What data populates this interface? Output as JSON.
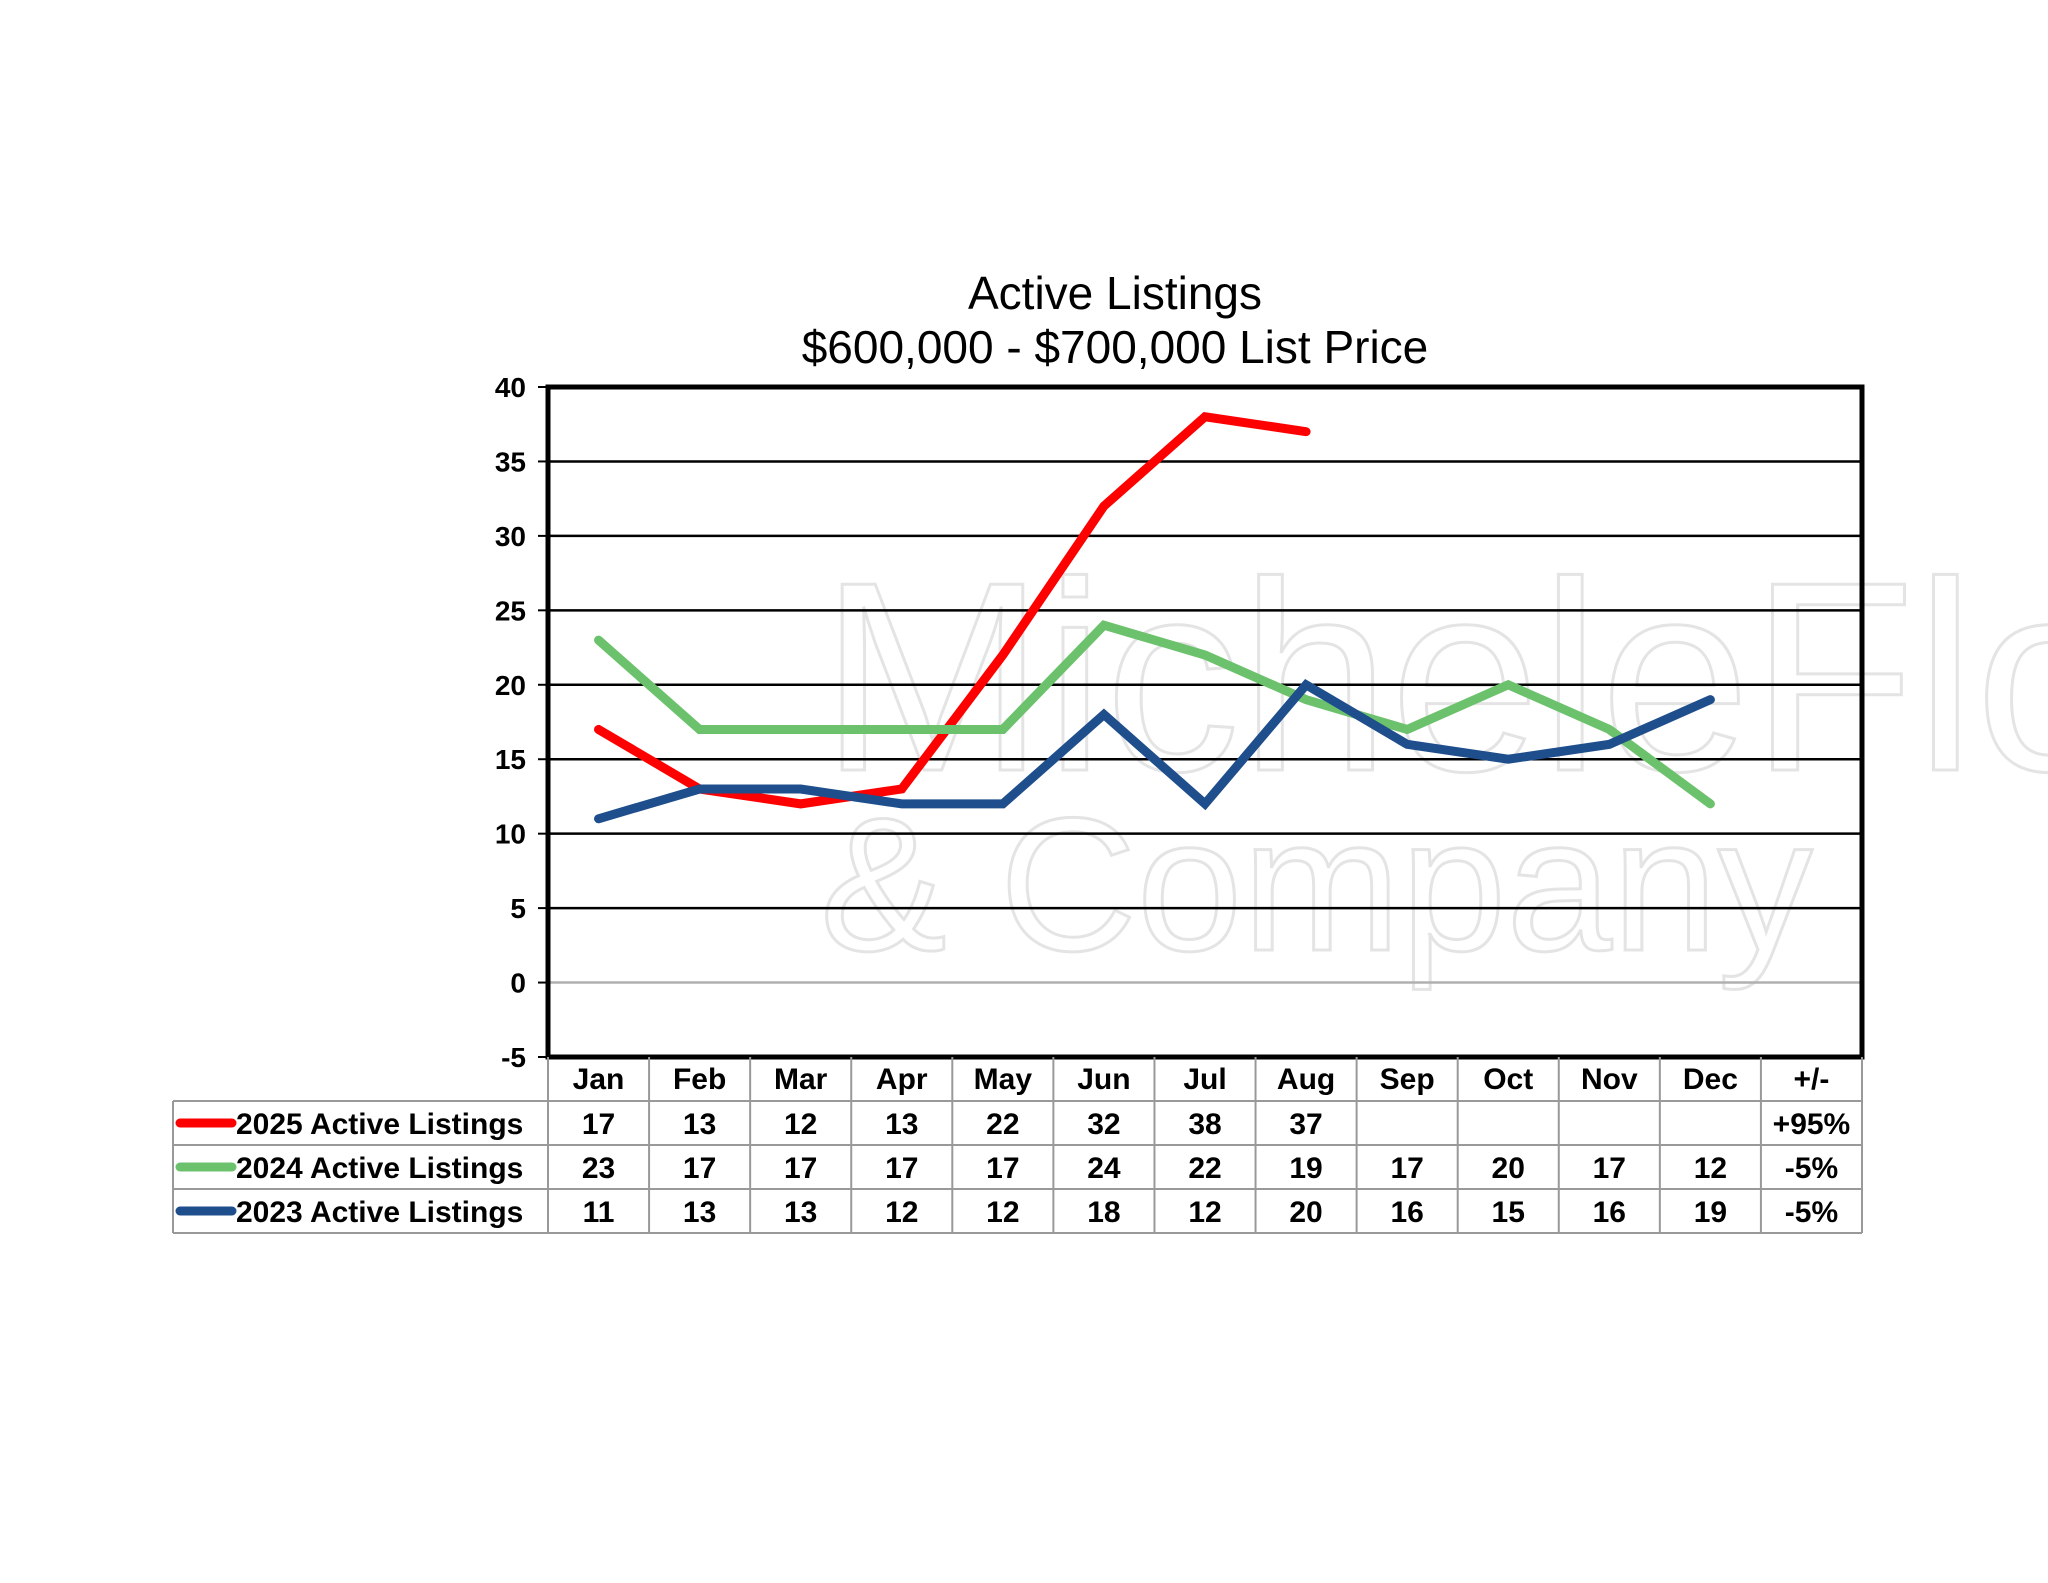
{
  "chart_data": {
    "type": "line",
    "title": "Active Listings",
    "subtitle": "$600,000 - $700,000 List Price",
    "categories": [
      "Jan",
      "Feb",
      "Mar",
      "Apr",
      "May",
      "Jun",
      "Jul",
      "Aug",
      "Sep",
      "Oct",
      "Nov",
      "Dec"
    ],
    "change_header": "+/-",
    "ylim": [
      -5,
      40
    ],
    "yticks": [
      40,
      35,
      30,
      25,
      20,
      15,
      10,
      5,
      0,
      -5
    ],
    "grid": true,
    "legend": "data-table-below",
    "series": [
      {
        "name": "2025 Active Listings",
        "color": "#ff0000",
        "values": [
          17,
          13,
          12,
          13,
          22,
          32,
          38,
          37,
          null,
          null,
          null,
          null
        ],
        "change": "+95%"
      },
      {
        "name": "2024 Active Listings",
        "color": "#6cc26c",
        "values": [
          23,
          17,
          17,
          17,
          17,
          24,
          22,
          19,
          17,
          20,
          17,
          12
        ],
        "change": "-5%"
      },
      {
        "name": "2023 Active Listings",
        "color": "#1f4e8c",
        "values": [
          11,
          13,
          13,
          12,
          12,
          18,
          12,
          20,
          16,
          15,
          16,
          19
        ],
        "change": "-5%"
      }
    ]
  },
  "watermark": {
    "line1": "MicheleFlory",
    "line2": "& Company"
  }
}
